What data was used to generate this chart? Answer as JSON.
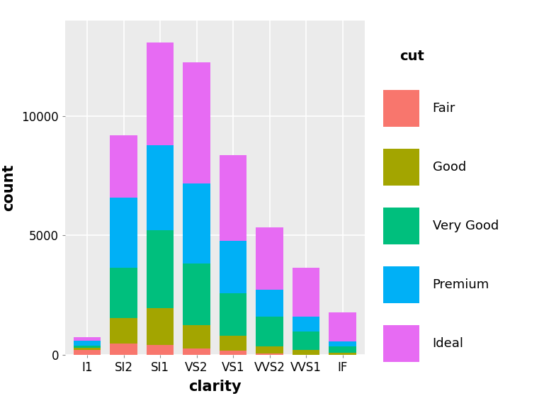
{
  "categories": [
    "I1",
    "SI2",
    "SI1",
    "VS2",
    "VS1",
    "VVS2",
    "VVS1",
    "IF"
  ],
  "cuts": [
    "Fair",
    "Good",
    "Very Good",
    "Premium",
    "Ideal"
  ],
  "colors": {
    "Fair": "#F8766D",
    "Good": "#A3A500",
    "Very Good": "#00BF7D",
    "Premium": "#00B0F6",
    "Ideal": "#E76BF3"
  },
  "data": {
    "I1": {
      "Fair": 210,
      "Good": 96,
      "Very Good": 84,
      "Premium": 205,
      "Ideal": 146
    },
    "SI2": {
      "Fair": 466,
      "Good": 1081,
      "Very Good": 2100,
      "Premium": 2949,
      "Ideal": 2598
    },
    "SI1": {
      "Fair": 408,
      "Good": 1560,
      "Very Good": 3240,
      "Premium": 3575,
      "Ideal": 4282
    },
    "VS2": {
      "Fair": 261,
      "Good": 978,
      "Very Good": 2591,
      "Premium": 3357,
      "Ideal": 5071
    },
    "VS1": {
      "Fair": 170,
      "Good": 648,
      "Very Good": 1775,
      "Premium": 2194,
      "Ideal": 3589
    },
    "VVS2": {
      "Fair": 69,
      "Good": 286,
      "Very Good": 1235,
      "Premium": 1136,
      "Ideal": 2606
    },
    "VVS1": {
      "Fair": 17,
      "Good": 186,
      "Very Good": 789,
      "Premium": 616,
      "Ideal": 2047
    },
    "IF": {
      "Fair": 9,
      "Good": 71,
      "Very Good": 268,
      "Premium": 230,
      "Ideal": 1212
    }
  },
  "xlabel": "clarity",
  "ylabel": "count",
  "legend_title": "cut",
  "ylim": [
    0,
    14000
  ],
  "yticks": [
    0,
    5000,
    10000
  ],
  "plot_bg": "#EBEBEB",
  "fig_bg": "#FFFFFF",
  "grid_color": "#FFFFFF",
  "bar_width": 0.75
}
